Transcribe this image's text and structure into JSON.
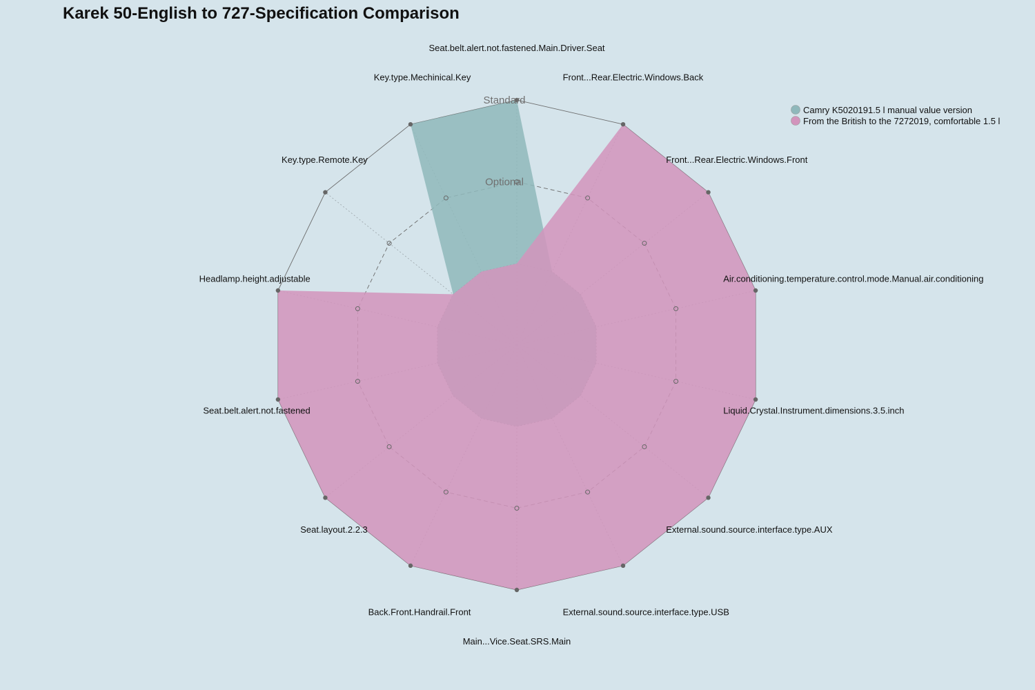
{
  "chart_data": {
    "type": "radar",
    "title": "Karek 50-English to 727-Specification Comparison",
    "levels": [
      "Optional",
      "Standard"
    ],
    "axes": [
      "Seat.belt.alert.not.fastened.Main.Driver.Seat",
      "Front...Rear.Electric.Windows.Back",
      "Front...Rear.Electric.Windows.Front",
      "Air.conditioning.temperature.control.mode.Manual.air.conditioning",
      "Liquid.Crystal.Instrument.dimensions.3.5.inch",
      "External.sound.source.interface.type.AUX",
      "External.sound.source.interface.type.USB",
      "Main...Vice.Seat.SRS.Main",
      "Back.Front.Handrail.Front",
      "Seat.layout.2.2.3",
      "Seat.belt.alert.not.fastened",
      "Headlamp.height.adjustable",
      "Key.type.Remote.Key",
      "Key.type.Mechinical.Key"
    ],
    "series": [
      {
        "name": "Camry K5020191.5 l manual value version",
        "color": "#8fb8bb",
        "values": [
          2,
          0,
          0,
          0,
          0,
          0,
          0,
          0,
          0,
          0,
          0,
          0,
          0,
          2
        ]
      },
      {
        "name": "From the British to the 7272019, comfortable 1.5 l",
        "color": "#d294bc",
        "values": [
          0,
          2,
          2,
          2,
          2,
          2,
          2,
          2,
          2,
          2,
          2,
          2,
          0,
          0
        ]
      }
    ],
    "legend_position": "top-right",
    "background": "#d5e4eb"
  }
}
